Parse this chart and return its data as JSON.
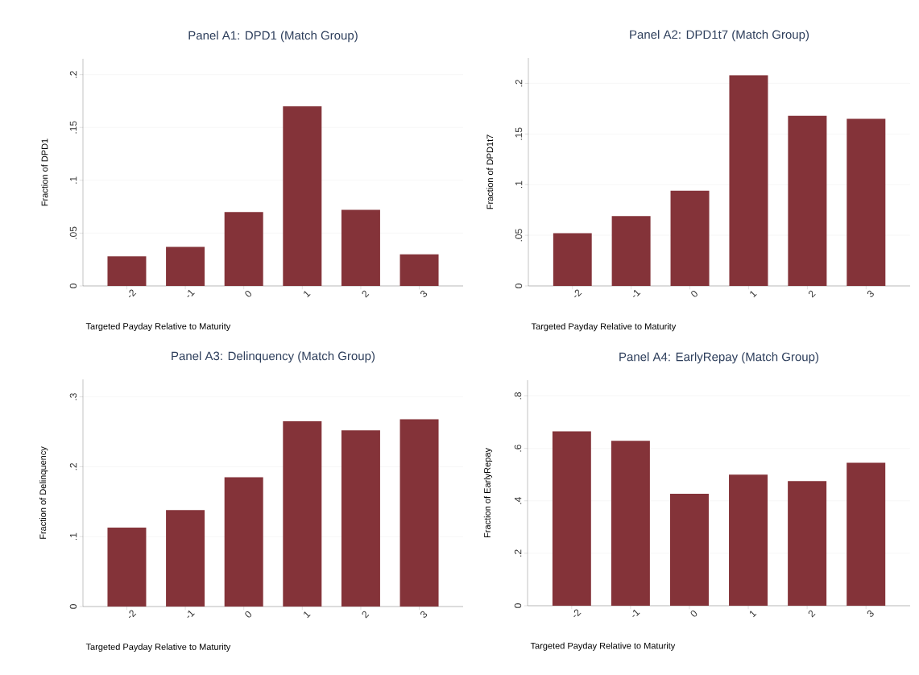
{
  "chart_data": [
    {
      "type": "bar",
      "title": "Panel A1: DPD1 (Match Group)",
      "xlabel": "Targeted Payday Relative to Maturity",
      "ylabel": "Fraction of DPD1",
      "categories": [
        "-2",
        "-1",
        "0",
        "1",
        "2",
        "3"
      ],
      "values": [
        0.028,
        0.037,
        0.07,
        0.17,
        0.072,
        0.03
      ],
      "color": "#843339",
      "ylim": [
        0,
        0.215
      ],
      "yticks": [
        0,
        {
          "value": 0.05,
          "label": ".05"
        },
        {
          "value": 0.1,
          "label": ".1"
        },
        {
          "value": 0.15,
          "label": ".15"
        },
        {
          "value": 0.2,
          "label": ".2"
        }
      ],
      "grid": "y"
    },
    {
      "type": "bar",
      "title": "Panel A2: DPD1t7 (Match Group)",
      "xlabel": "Targeted Payday Relative to Maturity",
      "ylabel": "Fraction of DPD1t7",
      "categories": [
        "-2",
        "-1",
        "0",
        "1",
        "2",
        "3"
      ],
      "values": [
        0.052,
        0.069,
        0.094,
        0.208,
        0.168,
        0.165
      ],
      "color": "#843339",
      "ylim": [
        0,
        0.225
      ],
      "yticks": [
        0,
        {
          "value": 0.05,
          "label": ".05"
        },
        {
          "value": 0.1,
          "label": ".1"
        },
        {
          "value": 0.15,
          "label": ".15"
        },
        {
          "value": 0.2,
          "label": ".2"
        }
      ],
      "grid": "y"
    },
    {
      "type": "bar",
      "title": "Panel A3: Delinquency (Match Group)",
      "xlabel": "Targeted Payday Relative to Maturity",
      "ylabel": "Fraction of Delinquency",
      "categories": [
        "-2",
        "-1",
        "0",
        "1",
        "2",
        "3"
      ],
      "values": [
        0.113,
        0.138,
        0.185,
        0.265,
        0.252,
        0.268
      ],
      "color": "#843339",
      "ylim": [
        0,
        0.325
      ],
      "yticks": [
        0,
        {
          "value": 0.1,
          "label": ".1"
        },
        {
          "value": 0.2,
          "label": ".2"
        },
        {
          "value": 0.3,
          "label": ".3"
        }
      ],
      "grid": "y"
    },
    {
      "type": "bar",
      "title": "Panel A4: EarlyRepay (Match Group)",
      "xlabel": "Targeted Payday Relative to Maturity",
      "ylabel": "Fraction of EarlyRepay",
      "categories": [
        "-2",
        "-1",
        "0",
        "1",
        "2",
        "3"
      ],
      "values": [
        0.665,
        0.629,
        0.427,
        0.5,
        0.475,
        0.545
      ],
      "color": "#843339",
      "ylim": [
        0,
        0.86
      ],
      "yticks": [
        0,
        {
          "value": 0.2,
          "label": ".2"
        },
        {
          "value": 0.4,
          "label": ".4"
        },
        {
          "value": 0.6,
          "label": ".6"
        },
        {
          "value": 0.8,
          "label": ".8"
        }
      ],
      "grid": "y"
    }
  ]
}
